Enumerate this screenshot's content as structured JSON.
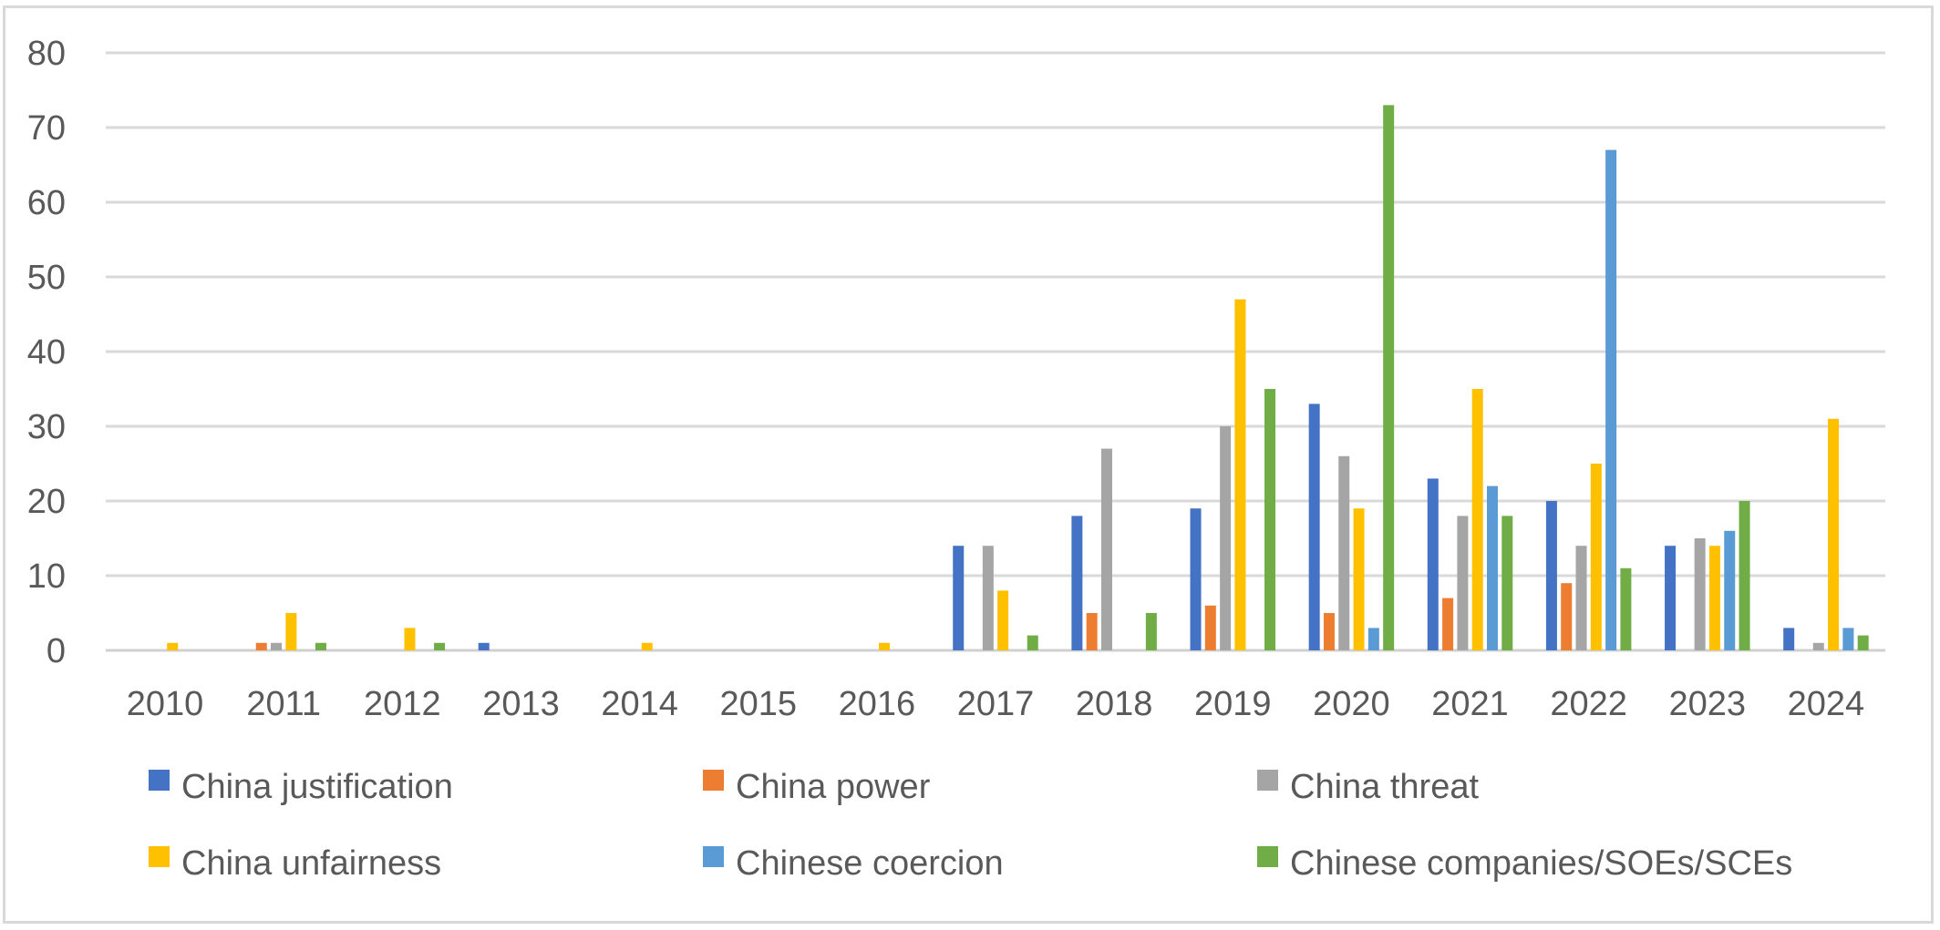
{
  "chart_data": {
    "type": "bar",
    "title": "",
    "xlabel": "",
    "ylabel": "",
    "categories": [
      "2010",
      "2011",
      "2012",
      "2013",
      "2014",
      "2015",
      "2016",
      "2017",
      "2018",
      "2019",
      "2020",
      "2021",
      "2022",
      "2023",
      "2024"
    ],
    "ylim": [
      0,
      80
    ],
    "yticks": [
      0,
      10,
      20,
      30,
      40,
      50,
      60,
      70,
      80
    ],
    "grid": true,
    "legend_position": "bottom",
    "series": [
      {
        "name": "China justification",
        "color": "#4472c4",
        "values": [
          0,
          0,
          0,
          1,
          0,
          0,
          0,
          14,
          18,
          19,
          33,
          23,
          20,
          14,
          3
        ]
      },
      {
        "name": "China power",
        "color": "#ed7d31",
        "values": [
          0,
          1,
          0,
          0,
          0,
          0,
          0,
          0,
          5,
          6,
          5,
          7,
          9,
          0,
          0
        ]
      },
      {
        "name": "China threat",
        "color": "#a5a5a5",
        "values": [
          0,
          1,
          0,
          0,
          0,
          0,
          0,
          14,
          27,
          30,
          26,
          18,
          14,
          15,
          1
        ]
      },
      {
        "name": "China unfairness",
        "color": "#ffc000",
        "values": [
          1,
          5,
          3,
          0,
          1,
          0,
          1,
          8,
          0,
          47,
          19,
          35,
          25,
          14,
          31
        ]
      },
      {
        "name": "Chinese coercion",
        "color": "#5b9bd5",
        "values": [
          0,
          0,
          0,
          0,
          0,
          0,
          0,
          0,
          0,
          0,
          3,
          22,
          67,
          16,
          3
        ]
      },
      {
        "name": "Chinese companies/SOEs/SCEs",
        "color": "#70ad47",
        "values": [
          0,
          1,
          1,
          0,
          0,
          0,
          0,
          2,
          5,
          35,
          73,
          18,
          11,
          20,
          2
        ]
      }
    ]
  }
}
